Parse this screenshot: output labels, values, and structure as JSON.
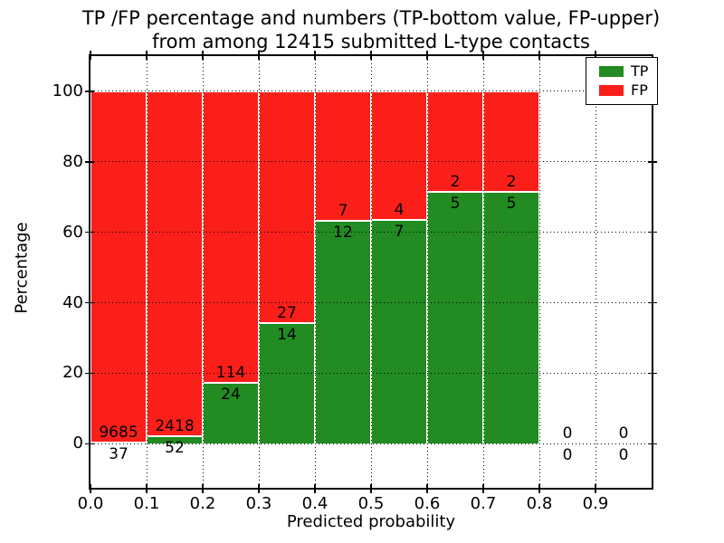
{
  "chart_data": {
    "type": "bar",
    "subtype": "stacked-percentage-histogram",
    "title": "TP /FP percentage and numbers (TP-bottom value, FP-upper)\nfrom among 12415 submitted L-type contacts",
    "title_lines": [
      "TP /FP percentage and numbers (TP-bottom value, FP-upper)",
      "from among 12415 submitted L-type contacts"
    ],
    "xlabel": "Predicted probability",
    "ylabel": "Percentage",
    "total_submitted_contacts": 12415,
    "bins": {
      "start": [
        0.0,
        0.1,
        0.2,
        0.3,
        0.4,
        0.5,
        0.6,
        0.7,
        0.8,
        0.9
      ],
      "width": 0.1
    },
    "series": [
      {
        "name": "TP",
        "color": "#228b22",
        "stack_position": "bottom",
        "counts": [
          37,
          52,
          24,
          14,
          12,
          7,
          5,
          5,
          0,
          0
        ],
        "percent_of_bin": [
          0.38,
          2.11,
          17.39,
          34.15,
          63.16,
          63.64,
          71.43,
          71.43,
          0,
          0
        ]
      },
      {
        "name": "FP",
        "color": "#fb1f1a",
        "stack_position": "top",
        "counts": [
          9685,
          2418,
          114,
          27,
          7,
          4,
          2,
          2,
          0,
          0
        ],
        "percent_of_bin": [
          99.62,
          97.89,
          82.61,
          65.85,
          36.84,
          36.36,
          28.57,
          28.57,
          0,
          0
        ]
      }
    ],
    "bar_label_rule": "FP count printed just above the TP/FP boundary, TP count just below it",
    "xticks": {
      "values": [
        0.0,
        0.1,
        0.2,
        0.3,
        0.4,
        0.5,
        0.6,
        0.7,
        0.8,
        0.9
      ],
      "labels": [
        "0.0",
        "0.1",
        "0.2",
        "0.3",
        "0.4",
        "0.5",
        "0.6",
        "0.7",
        "0.8",
        "0.9"
      ]
    },
    "yticks": {
      "values": [
        0,
        20,
        40,
        60,
        80,
        100
      ],
      "labels": [
        "0",
        "20",
        "40",
        "60",
        "80",
        "100"
      ]
    },
    "xlim": [
      0.0,
      1.0
    ],
    "ylim": [
      -12.5,
      110
    ],
    "grid": {
      "on": true,
      "style": "dotted",
      "color": "#000000"
    },
    "legend": {
      "position": "upper-right",
      "entries": [
        {
          "label": "TP",
          "color": "#228b22"
        },
        {
          "label": "FP",
          "color": "#fb1f1a"
        }
      ]
    },
    "axes": {
      "background": "#ffffff",
      "spine_color": "#000000",
      "bar_edge_color": "#ffffff"
    }
  }
}
